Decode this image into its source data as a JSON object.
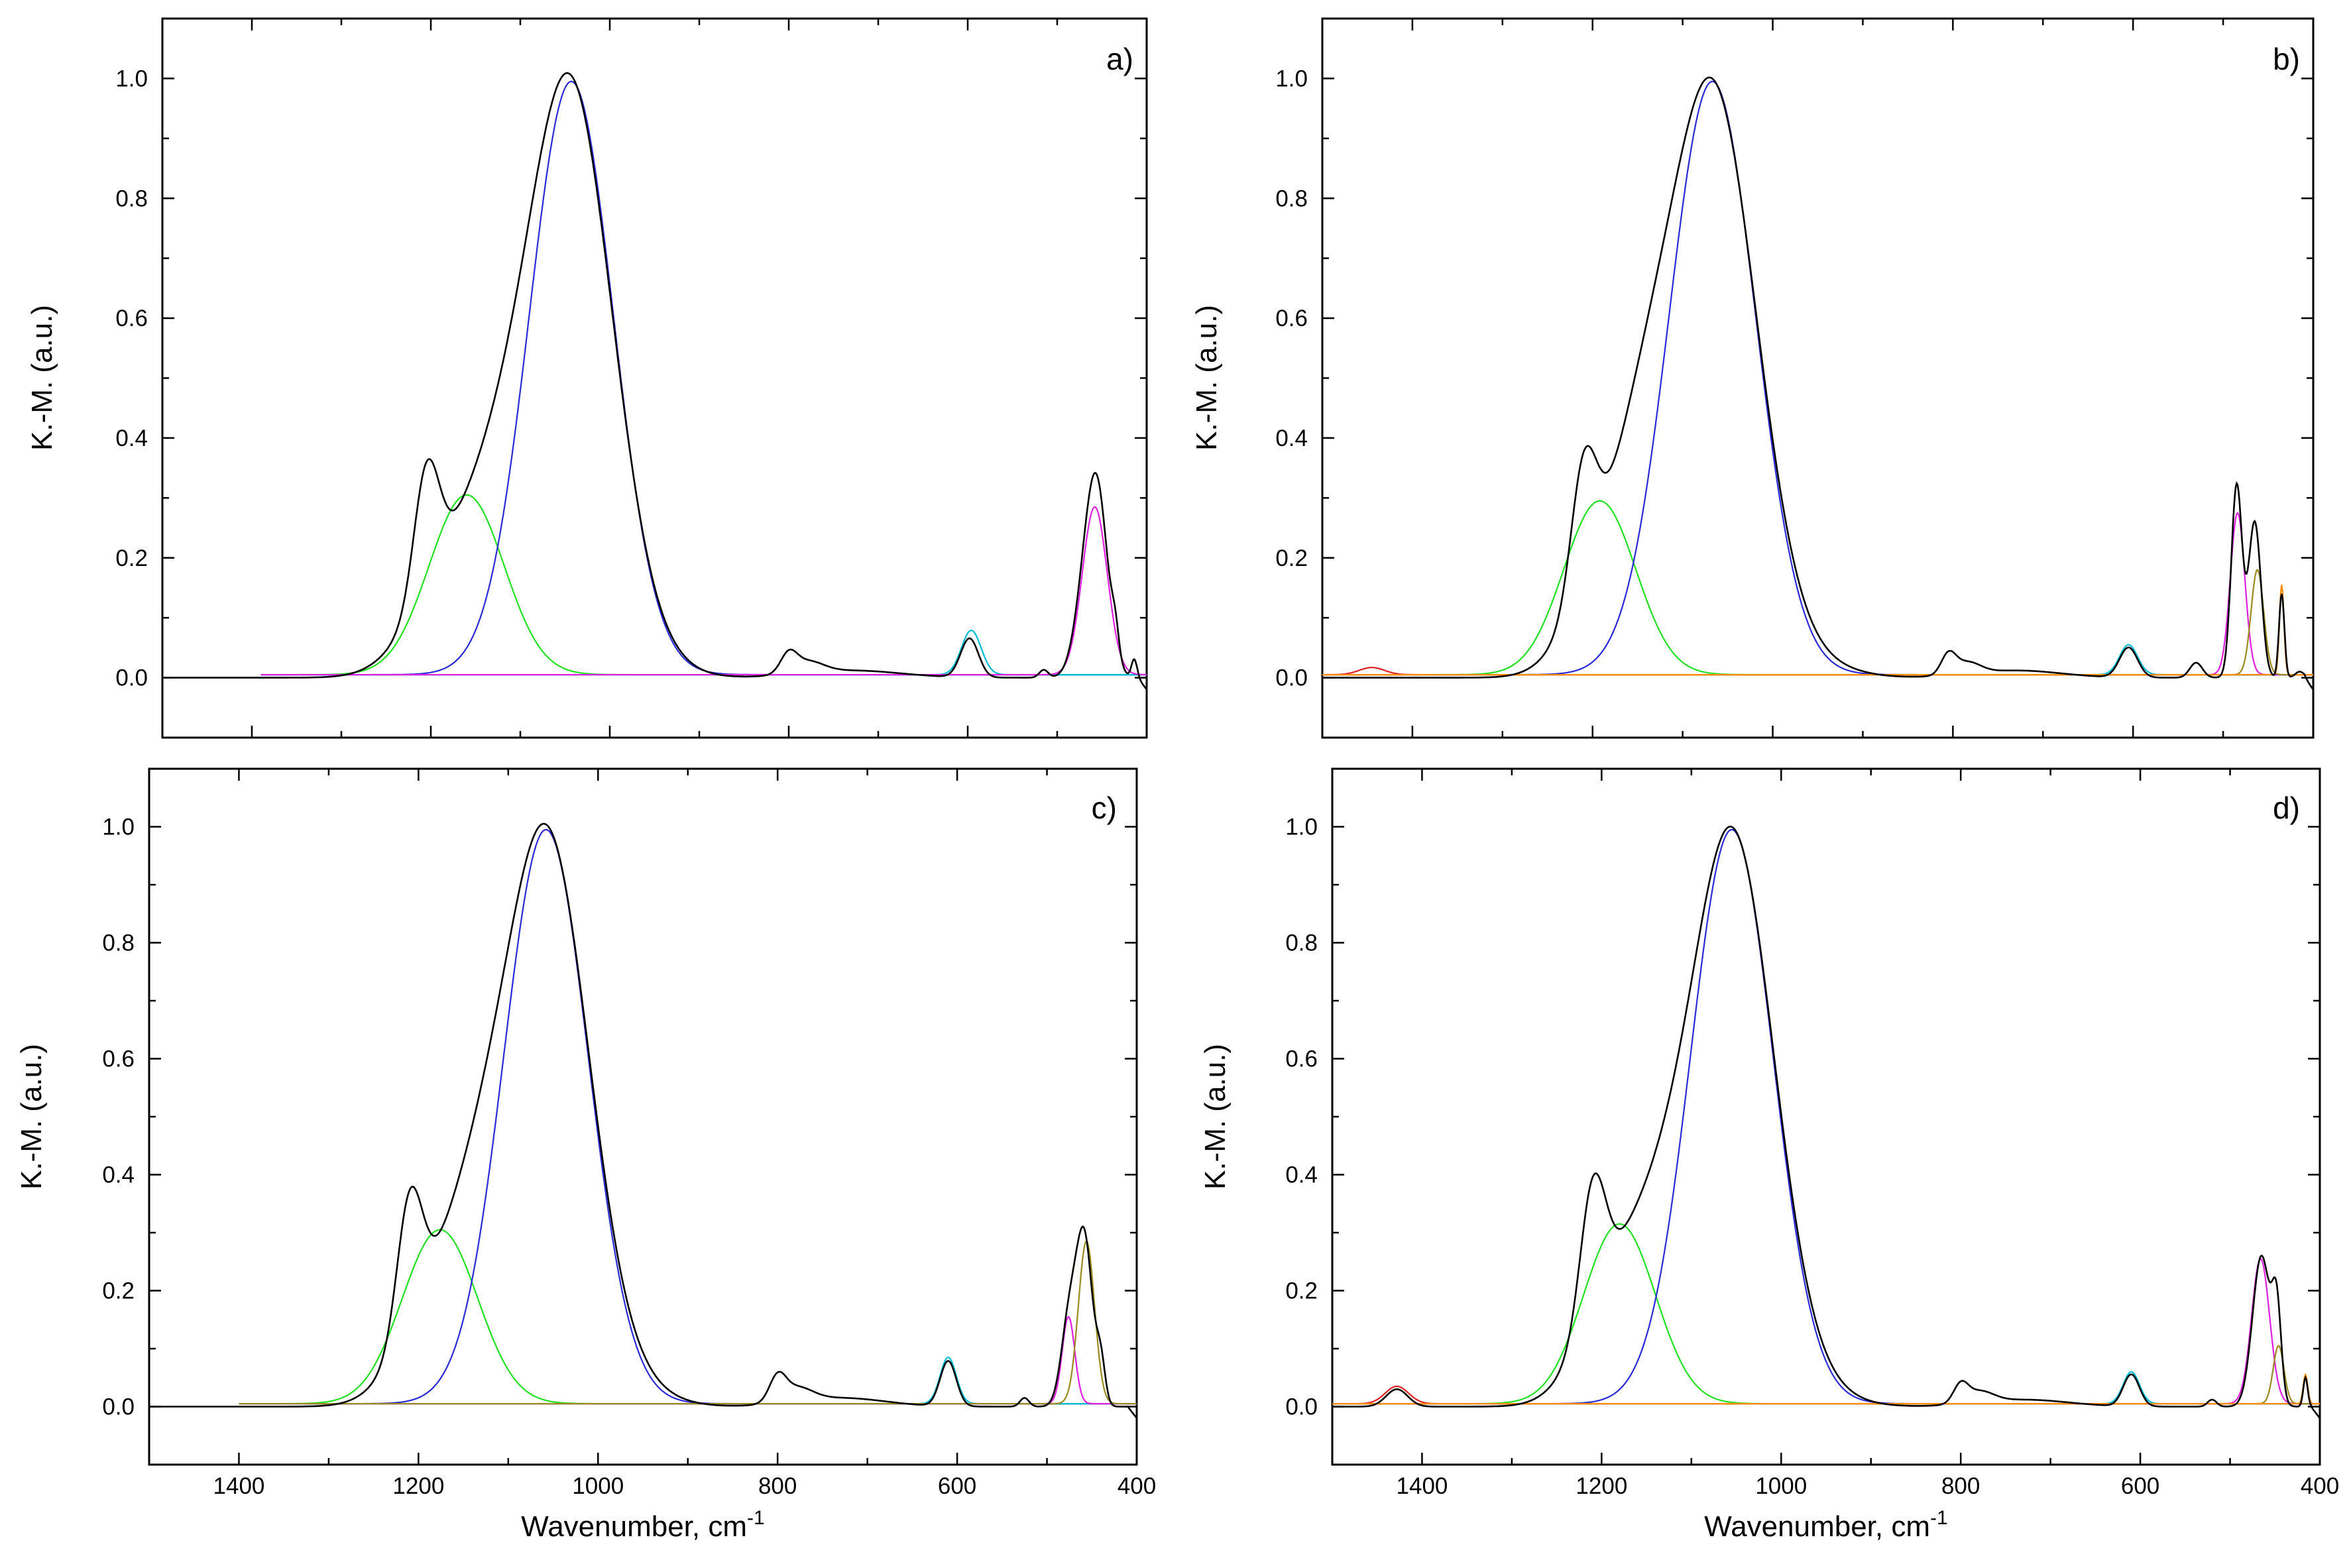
{
  "chart_data": [
    {
      "panel_label": "a)",
      "type": "line",
      "ylabel": "K.-M. (a.u.)",
      "xlabel": "",
      "x_range": [
        1500,
        400
      ],
      "ylim": [
        -0.1,
        1.1
      ],
      "y_ticks": [
        "0.0",
        "0.2",
        "0.4",
        "0.6",
        "0.8",
        "1.0"
      ],
      "x_ticks": [],
      "baseline_from": 1390,
      "experimental": {
        "name": "experimental spectrum",
        "color": "#000000",
        "start": 1500,
        "peaks": [
          [
            1205,
            0.2,
            14
          ],
          [
            1170,
            0.2,
            46
          ],
          [
            1120,
            0.12,
            35
          ],
          [
            1045,
            0.99,
            48
          ],
          [
            950,
            0.012,
            40
          ],
          [
            800,
            0.03,
            9
          ],
          [
            780,
            0.02,
            18
          ],
          [
            730,
            0.012,
            55
          ],
          [
            598,
            0.065,
            10
          ],
          [
            515,
            0.013,
            5
          ],
          [
            470,
            0.1,
            12
          ],
          [
            455,
            0.29,
            12
          ],
          [
            435,
            0.04,
            4
          ],
          [
            414,
            0.03,
            3
          ]
        ]
      },
      "components": [
        {
          "name": "component-1165",
          "color": "#22e022",
          "center": 1160,
          "height": 0.3,
          "width": 42
        },
        {
          "name": "component-1045",
          "color": "#2a2ad6",
          "center": 1043,
          "height": 0.99,
          "width": 47
        },
        {
          "name": "component-595",
          "color": "#00bcd4",
          "center": 596,
          "height": 0.074,
          "width": 11
        },
        {
          "name": "component-460",
          "color": "#e020e0",
          "center": 458,
          "height": 0.28,
          "width": 14
        }
      ]
    },
    {
      "panel_label": "b)",
      "type": "line",
      "ylabel": "K.-M. (a.u.)",
      "xlabel": "",
      "x_range": [
        1500,
        400
      ],
      "ylim": [
        -0.1,
        1.1
      ],
      "y_ticks": [
        "0.0",
        "0.2",
        "0.4",
        "0.6",
        "0.8",
        "1.0"
      ],
      "x_ticks": [],
      "baseline_from": 1500,
      "experimental": {
        "name": "experimental spectrum",
        "color": "#000000",
        "start": 1500,
        "peaks": [
          [
            1210,
            0.2,
            14
          ],
          [
            1180,
            0.2,
            40
          ],
          [
            1140,
            0.12,
            30
          ],
          [
            1068,
            0.99,
            50
          ],
          [
            940,
            0.012,
            40
          ],
          [
            805,
            0.032,
            8
          ],
          [
            785,
            0.02,
            15
          ],
          [
            730,
            0.012,
            50
          ],
          [
            605,
            0.05,
            10
          ],
          [
            530,
            0.025,
            7
          ],
          [
            485,
            0.32,
            6
          ],
          [
            465,
            0.26,
            7
          ],
          [
            435,
            0.14,
            3
          ],
          [
            415,
            0.01,
            5
          ]
        ]
      },
      "components": [
        {
          "name": "component-1440",
          "color": "#e02020",
          "center": 1445,
          "height": 0.012,
          "width": 14
        },
        {
          "name": "component-1195",
          "color": "#22e022",
          "center": 1192,
          "height": 0.29,
          "width": 40
        },
        {
          "name": "component-1065",
          "color": "#2a2ad6",
          "center": 1067,
          "height": 0.99,
          "width": 48
        },
        {
          "name": "component-600",
          "color": "#00bcd4",
          "center": 605,
          "height": 0.05,
          "width": 10
        },
        {
          "name": "component-485",
          "color": "#e020e0",
          "center": 484,
          "height": 0.27,
          "width": 8
        },
        {
          "name": "component-460",
          "color": "#9a8a20",
          "center": 462,
          "height": 0.175,
          "width": 7
        },
        {
          "name": "component-435",
          "color": "#ff8c00",
          "center": 435,
          "height": 0.15,
          "width": 2.5
        }
      ]
    },
    {
      "panel_label": "c)",
      "type": "line",
      "ylabel": "K.-M. (a.u.)",
      "xlabel": "Wavenumber, cm",
      "xlabel_sup": "-1",
      "x_range": [
        1500,
        400
      ],
      "ylim": [
        -0.1,
        1.1
      ],
      "y_ticks": [
        "0.0",
        "0.2",
        "0.4",
        "0.6",
        "0.8",
        "1.0"
      ],
      "x_ticks": [
        "1400",
        "1200",
        "1000",
        "800",
        "600",
        "400"
      ],
      "baseline_from": 1400,
      "experimental": {
        "name": "experimental spectrum",
        "color": "#000000",
        "start": 1500,
        "peaks": [
          [
            1210,
            0.22,
            14
          ],
          [
            1175,
            0.2,
            42
          ],
          [
            1130,
            0.12,
            32
          ],
          [
            1058,
            0.99,
            48
          ],
          [
            950,
            0.015,
            40
          ],
          [
            800,
            0.04,
            9
          ],
          [
            780,
            0.025,
            18
          ],
          [
            730,
            0.015,
            50
          ],
          [
            610,
            0.078,
            9
          ],
          [
            525,
            0.015,
            5
          ],
          [
            475,
            0.15,
            9
          ],
          [
            458,
            0.28,
            9
          ],
          [
            440,
            0.07,
            5
          ]
        ]
      },
      "components": [
        {
          "name": "component-1175",
          "color": "#22e022",
          "center": 1176,
          "height": 0.3,
          "width": 42
        },
        {
          "name": "component-1060",
          "color": "#2a2ad6",
          "center": 1058,
          "height": 0.99,
          "width": 47
        },
        {
          "name": "component-610",
          "color": "#00bcd4",
          "center": 610,
          "height": 0.08,
          "width": 9
        },
        {
          "name": "component-475",
          "color": "#e020e0",
          "center": 476,
          "height": 0.15,
          "width": 7
        },
        {
          "name": "component-455",
          "color": "#9a8a20",
          "center": 456,
          "height": 0.28,
          "width": 9
        }
      ]
    },
    {
      "panel_label": "d)",
      "type": "line",
      "ylabel": "K.-M. (a.u.)",
      "xlabel": "Wavenumber, cm",
      "xlabel_sup": "-1",
      "x_range": [
        1500,
        400
      ],
      "ylim": [
        -0.1,
        1.1
      ],
      "y_ticks": [
        "0.0",
        "0.2",
        "0.4",
        "0.6",
        "0.8",
        "1.0"
      ],
      "x_ticks": [
        "1400",
        "1200",
        "1000",
        "800",
        "600",
        "400"
      ],
      "baseline_from": 1500,
      "experimental": {
        "name": "experimental spectrum",
        "color": "#000000",
        "start": 1500,
        "peaks": [
          [
            1428,
            0.03,
            12
          ],
          [
            1210,
            0.22,
            14
          ],
          [
            1180,
            0.22,
            40
          ],
          [
            1130,
            0.12,
            32
          ],
          [
            1055,
            0.99,
            47
          ],
          [
            950,
            0.012,
            40
          ],
          [
            800,
            0.03,
            8
          ],
          [
            780,
            0.02,
            16
          ],
          [
            730,
            0.012,
            50
          ],
          [
            610,
            0.055,
            9
          ],
          [
            520,
            0.012,
            5
          ],
          [
            465,
            0.26,
            10
          ],
          [
            448,
            0.15,
            5
          ],
          [
            416,
            0.05,
            2.5
          ]
        ]
      },
      "components": [
        {
          "name": "component-1430",
          "color": "#e02020",
          "center": 1428,
          "height": 0.03,
          "width": 13
        },
        {
          "name": "component-1180",
          "color": "#22e022",
          "center": 1180,
          "height": 0.31,
          "width": 40
        },
        {
          "name": "component-1055",
          "color": "#2a2ad6",
          "center": 1055,
          "height": 0.99,
          "width": 46
        },
        {
          "name": "component-610",
          "color": "#00bcd4",
          "center": 610,
          "height": 0.055,
          "width": 9
        },
        {
          "name": "component-465",
          "color": "#e020e0",
          "center": 466,
          "height": 0.25,
          "width": 10
        },
        {
          "name": "component-445",
          "color": "#9a8a20",
          "center": 446,
          "height": 0.1,
          "width": 6
        },
        {
          "name": "component-415",
          "color": "#ff8c00",
          "center": 416,
          "height": 0.05,
          "width": 2.5
        }
      ]
    }
  ]
}
